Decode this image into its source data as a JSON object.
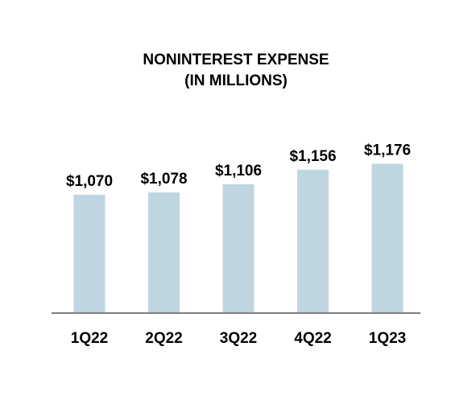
{
  "chart_data": {
    "type": "bar",
    "title_lines": [
      "NONINTEREST EXPENSE",
      "(IN MILLIONS)"
    ],
    "categories": [
      "1Q22",
      "2Q22",
      "3Q22",
      "4Q22",
      "1Q23"
    ],
    "values": [
      1070,
      1078,
      1106,
      1156,
      1176
    ],
    "data_labels": [
      "$1,070",
      "$1,078",
      "$1,106",
      "$1,156",
      "$1,176"
    ],
    "xlabel": "",
    "ylabel": "",
    "grid": false,
    "legend": "none",
    "colors": {
      "bar": "#bfd6e0",
      "axis": "#7f7f7f",
      "text": "#000000"
    }
  }
}
